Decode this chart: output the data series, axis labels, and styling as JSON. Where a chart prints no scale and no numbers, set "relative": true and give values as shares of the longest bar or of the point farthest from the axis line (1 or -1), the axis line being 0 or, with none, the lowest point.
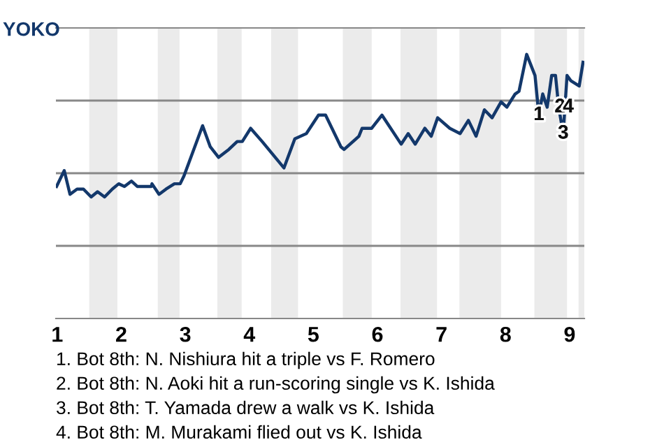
{
  "chart_data": {
    "type": "line",
    "relative": true,
    "ylabel": "YOKO",
    "xlim": [
      0.98,
      9.23
    ],
    "xticks": [
      1,
      2,
      3,
      4,
      5,
      6,
      7,
      8,
      9
    ],
    "grid": "y",
    "marker": "none",
    "line_style": "solid",
    "legend": false,
    "series": [
      {
        "color": "#13386b",
        "x": [
          0.99,
          1.11,
          1.2,
          1.31,
          1.41,
          1.53,
          1.63,
          1.74,
          1.86,
          1.96,
          2.05,
          2.16,
          2.25,
          2.47,
          2.48,
          2.59,
          2.7,
          2.83,
          2.92,
          2.98,
          3.27,
          3.39,
          3.52,
          3.68,
          3.81,
          3.89,
          4.02,
          4.2,
          4.54,
          4.71,
          4.89,
          5.08,
          5.19,
          5.43,
          5.48,
          5.71,
          5.76,
          5.91,
          6.07,
          6.18,
          6.37,
          6.48,
          6.59,
          6.74,
          6.84,
          6.94,
          7.13,
          7.29,
          7.42,
          7.54,
          7.67,
          7.79,
          7.93,
          8.02,
          8.15,
          8.21,
          8.33,
          8.46,
          8.52,
          8.58,
          8.65,
          8.72,
          8.78,
          8.83,
          8.9,
          8.96,
          9.02,
          9.15,
          9.21
        ],
        "values": [
          0.5,
          0.56,
          0.47,
          0.49,
          0.49,
          0.46,
          0.48,
          0.46,
          0.49,
          0.51,
          0.5,
          0.52,
          0.5,
          0.5,
          0.51,
          0.47,
          0.49,
          0.51,
          0.51,
          0.54,
          0.73,
          0.65,
          0.61,
          0.64,
          0.67,
          0.67,
          0.72,
          0.67,
          0.57,
          0.68,
          0.7,
          0.77,
          0.77,
          0.65,
          0.64,
          0.69,
          0.72,
          0.72,
          0.77,
          0.73,
          0.66,
          0.7,
          0.66,
          0.72,
          0.69,
          0.76,
          0.72,
          0.7,
          0.75,
          0.69,
          0.79,
          0.76,
          0.82,
          0.8,
          0.85,
          0.86,
          1.0,
          0.92,
          0.77,
          0.85,
          0.8,
          0.92,
          0.92,
          0.8,
          0.7,
          0.92,
          0.9,
          0.88,
          0.97
        ]
      }
    ],
    "bands": [
      {
        "axis": "x",
        "from": 1.5,
        "to": 1.94,
        "color": "#ebebeb"
      },
      {
        "axis": "x",
        "from": 2.57,
        "to": 2.91,
        "color": "#ebebeb"
      },
      {
        "axis": "x",
        "from": 3.5,
        "to": 3.88,
        "color": "#ebebeb"
      },
      {
        "axis": "x",
        "from": 4.34,
        "to": 4.76,
        "color": "#ebebeb"
      },
      {
        "axis": "x",
        "from": 5.46,
        "to": 5.91,
        "color": "#ebebeb"
      },
      {
        "axis": "x",
        "from": 6.36,
        "to": 6.93,
        "color": "#ebebeb"
      },
      {
        "axis": "x",
        "from": 7.28,
        "to": 7.93,
        "color": "#ebebeb"
      },
      {
        "axis": "x",
        "from": 8.45,
        "to": 8.96,
        "color": "#ebebeb"
      },
      {
        "axis": "x",
        "from": 9.14,
        "to": 9.23,
        "color": "#ebebeb"
      }
    ],
    "annotations": [
      {
        "text": "1",
        "x": 8.52,
        "y": 0.77
      },
      {
        "text": "2",
        "x": 8.85,
        "y": 0.8
      },
      {
        "text": "3",
        "x": 8.9,
        "y": 0.7
      },
      {
        "text": "4",
        "x": 8.98,
        "y": 0.8
      },
      "1. Bot 8th: N. Nishiura hit a triple vs F. Romero",
      "2. Bot 8th: N. Aoki hit a run-scoring single vs K. Ishida",
      "3. Bot 8th: T. Yamada drew a walk vs K. Ishida",
      "4. Bot 8th: M. Murakami flied out vs K. Ishida"
    ]
  }
}
